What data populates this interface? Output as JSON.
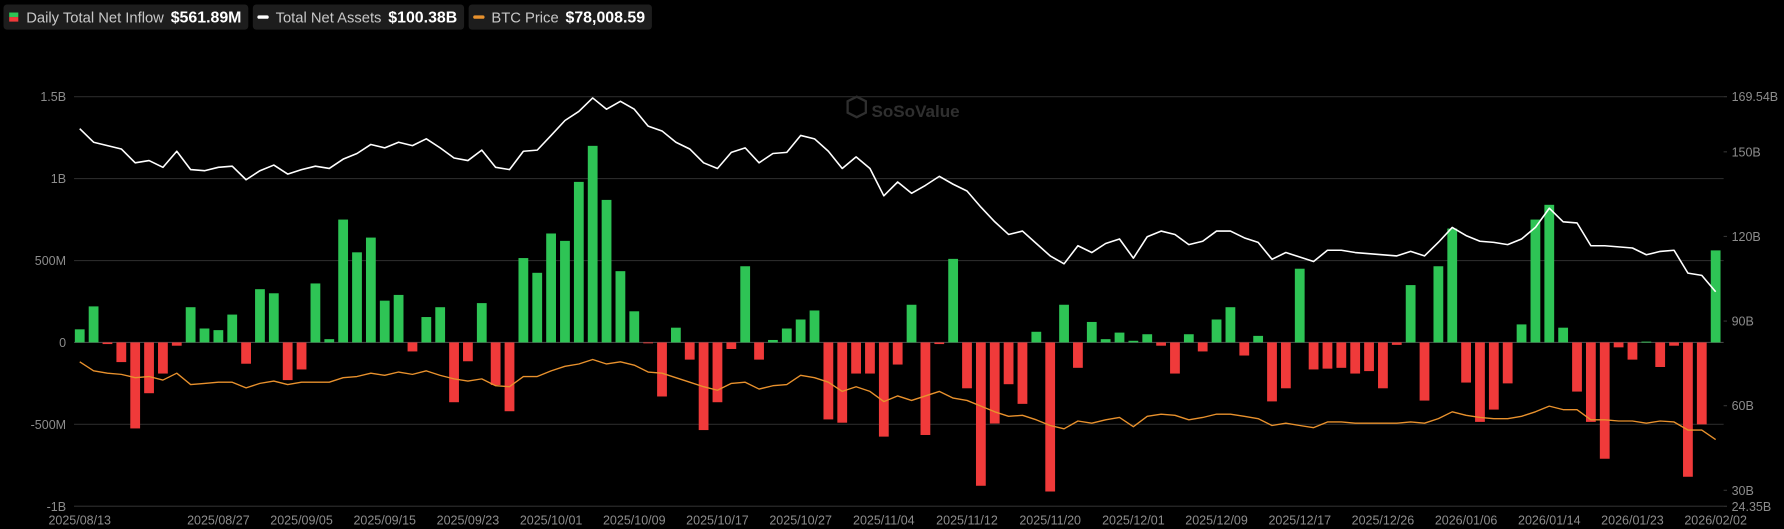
{
  "chart_data": {
    "type": "bar",
    "watermark": "SoSoValue",
    "categories": [
      "2025/08/13",
      null,
      null,
      null,
      null,
      null,
      null,
      null,
      null,
      null,
      "2025/08/27",
      null,
      null,
      null,
      null,
      null,
      "2025/09/05",
      null,
      null,
      null,
      null,
      null,
      "2025/09/15",
      null,
      null,
      null,
      null,
      null,
      "2025/09/23",
      null,
      null,
      null,
      null,
      null,
      "2025/10/01",
      null,
      null,
      null,
      null,
      null,
      "2025/10/09",
      null,
      null,
      null,
      null,
      null,
      "2025/10/17",
      null,
      null,
      null,
      null,
      null,
      "2025/10/27",
      null,
      null,
      null,
      null,
      null,
      "2025/11/04",
      null,
      null,
      null,
      null,
      null,
      "2025/11/12",
      null,
      null,
      null,
      null,
      null,
      "2025/11/20",
      null,
      null,
      null,
      null,
      null,
      "2025/12/01",
      null,
      null,
      null,
      null,
      null,
      "2025/12/09",
      null,
      null,
      null,
      null,
      null,
      "2025/12/17",
      null,
      null,
      null,
      null,
      null,
      "2025/12/26",
      null,
      null,
      null,
      null,
      null,
      "2026/01/06",
      null,
      null,
      null,
      null,
      null,
      "2026/01/14",
      null,
      null,
      null,
      null,
      null,
      "2026/01/23",
      null,
      null,
      null,
      null,
      null,
      "2026/02/02"
    ],
    "series": [
      {
        "name": "Daily Total Net Inflow",
        "type": "bar",
        "current_label": "$561.89M",
        "color": {
          "positive": "#2ec455",
          "negative": "#f03a3a"
        },
        "values": [
          80,
          220,
          -10,
          -120,
          -525,
          -310,
          -190,
          -20,
          215,
          85,
          75,
          170,
          -130,
          325,
          300,
          -230,
          -165,
          360,
          20,
          750,
          550,
          640,
          255,
          290,
          -55,
          155,
          215,
          -365,
          -115,
          240,
          -260,
          -420,
          515,
          425,
          665,
          620,
          980,
          1200,
          870,
          435,
          190,
          -5,
          -330,
          90,
          -105,
          -535,
          -365,
          -40,
          465,
          -105,
          15,
          85,
          140,
          195,
          -470,
          -490,
          -190,
          -190,
          -575,
          -135,
          230,
          -565,
          -10,
          510,
          -280,
          -875,
          -495,
          -255,
          -375,
          65,
          -910,
          230,
          -155,
          125,
          20,
          60,
          10,
          50,
          -20,
          -190,
          50,
          -55,
          140,
          215,
          -80,
          40,
          -360,
          -280,
          450,
          -165,
          -160,
          -155,
          -190,
          -175,
          -280,
          -15,
          350,
          -355,
          465,
          695,
          -245,
          -485,
          -410,
          -250,
          110,
          750,
          840,
          90,
          -300,
          -485,
          -710,
          -30,
          -105,
          5,
          -150,
          -20,
          -820,
          -500,
          561.89
        ]
      },
      {
        "name": "Total Net Assets",
        "type": "line",
        "axis": "y2",
        "current_label": "$100.38B",
        "color": "#ffffff",
        "values": [
          158.2,
          153.4,
          152.2,
          151.0,
          146.1,
          146.9,
          144.5,
          150.2,
          143.7,
          143.3,
          144.5,
          144.9,
          140.1,
          143.3,
          145.3,
          142.1,
          143.7,
          144.9,
          144.1,
          147.4,
          149.4,
          152.6,
          151.4,
          153.4,
          152.2,
          154.6,
          151.4,
          147.8,
          146.9,
          150.6,
          144.5,
          143.7,
          150.2,
          150.6,
          155.8,
          161.1,
          164.3,
          169.1,
          165.1,
          167.9,
          165.1,
          159.1,
          157.4,
          153.4,
          151.0,
          146.1,
          144.1,
          149.8,
          151.4,
          146.1,
          149.4,
          149.8,
          155.8,
          154.6,
          150.2,
          144.1,
          148.2,
          144.1,
          134.4,
          139.3,
          135.3,
          138.1,
          141.3,
          138.5,
          136.1,
          130.4,
          125.2,
          120.7,
          121.9,
          117.5,
          113.1,
          110.3,
          116.7,
          114.3,
          117.5,
          119.1,
          112.3,
          119.9,
          121.9,
          120.7,
          117.1,
          118.3,
          121.9,
          121.9,
          119.5,
          117.9,
          111.9,
          114.3,
          112.7,
          111.1,
          115.1,
          115.1,
          114.3,
          113.9,
          113.5,
          113.1,
          114.7,
          113.1,
          117.9,
          123.2,
          120.3,
          118.3,
          117.9,
          117.1,
          119.1,
          123.2,
          130.0,
          125.2,
          124.8,
          116.7,
          116.7,
          116.3,
          115.9,
          113.5,
          114.7,
          115.1,
          107.0,
          106.2,
          100.38
        ]
      },
      {
        "name": "BTC Price",
        "type": "line",
        "axis": "y3",
        "current_label": "$78,008.59",
        "color": "#e8912d",
        "values": [
          117700,
          113100,
          111900,
          111300,
          109600,
          110200,
          108400,
          111900,
          106100,
          106700,
          107300,
          107300,
          104400,
          106700,
          107900,
          106100,
          107300,
          107300,
          107300,
          109600,
          110200,
          111900,
          110800,
          112500,
          111300,
          113100,
          110800,
          109000,
          107900,
          109000,
          105500,
          105000,
          110200,
          110200,
          113100,
          115400,
          116600,
          118900,
          116600,
          117700,
          116000,
          112500,
          111900,
          109600,
          107300,
          105000,
          103200,
          106700,
          107300,
          103800,
          105500,
          106100,
          110800,
          109600,
          107300,
          102600,
          105000,
          102600,
          97400,
          100300,
          98000,
          100300,
          102600,
          99200,
          98000,
          95100,
          92200,
          89900,
          90400,
          88100,
          85200,
          83500,
          87500,
          86400,
          88100,
          89300,
          84600,
          89900,
          91000,
          90400,
          88100,
          89300,
          91000,
          91000,
          89900,
          88700,
          85200,
          86400,
          85200,
          84100,
          87000,
          87000,
          86400,
          86400,
          86400,
          86400,
          87000,
          86400,
          88700,
          92200,
          90400,
          89300,
          88700,
          88700,
          89900,
          92200,
          95100,
          93300,
          93300,
          88100,
          88100,
          87500,
          87500,
          86400,
          87500,
          87000,
          82900,
          82900,
          78008.59
        ]
      }
    ],
    "ylim": [
      -1000,
      1500
    ],
    "yticks": [
      {
        "value": -1000,
        "label": "-1B"
      },
      {
        "value": -500,
        "label": "-500M"
      },
      0,
      {
        "value": 500,
        "label": "500M"
      },
      {
        "value": 1000,
        "label": "1B"
      },
      {
        "value": 1500,
        "label": "1.5B"
      }
    ],
    "y2lim": [
      24.35,
      169.54
    ],
    "y2ticks": [
      {
        "value": 24.35,
        "label": "24.35B"
      },
      {
        "value": 30,
        "label": "30B"
      },
      {
        "value": 60,
        "label": "60B"
      },
      {
        "value": 90,
        "label": "90B"
      },
      {
        "value": 120,
        "label": "120B"
      },
      {
        "value": 150,
        "label": "150B"
      },
      {
        "value": 169.54,
        "label": "169.54B"
      }
    ],
    "y3lim": [
      44000,
      253000
    ],
    "grid": true
  }
}
